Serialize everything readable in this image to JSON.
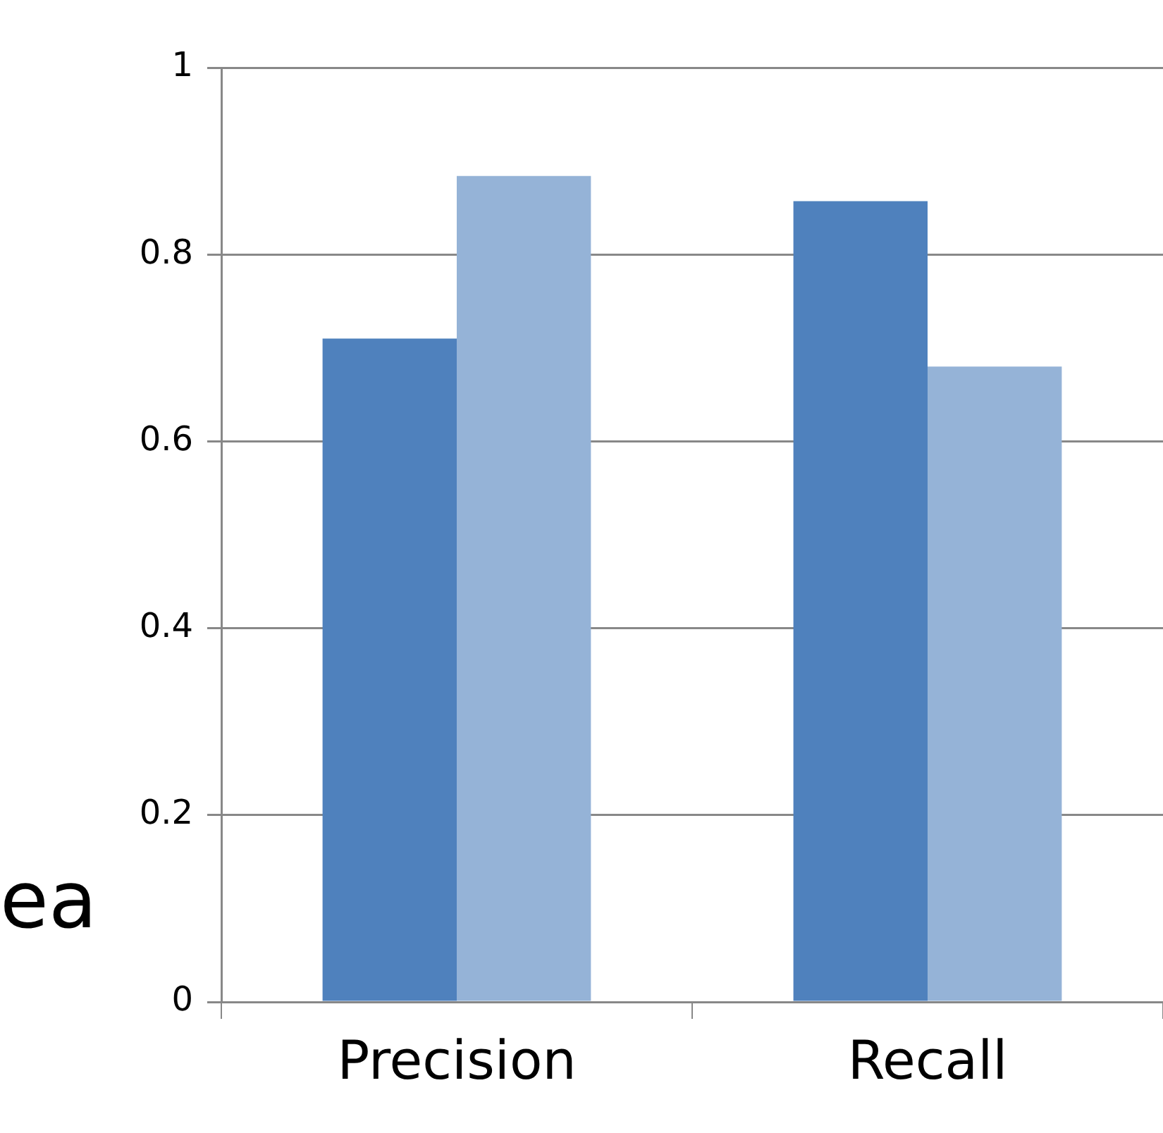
{
  "chart_data": {
    "type": "bar",
    "categories": [
      "Precision",
      "Recall"
    ],
    "series": [
      {
        "color": "#4f81bd",
        "values": [
          0.71,
          0.857
        ]
      },
      {
        "color": "#95b3d7",
        "values": [
          0.884,
          0.68
        ]
      }
    ],
    "ylim": [
      0,
      1
    ],
    "yticks": [
      0,
      0.2,
      0.4,
      0.6,
      0.8,
      1
    ],
    "grid": "y",
    "annotations": [
      "ea"
    ]
  }
}
